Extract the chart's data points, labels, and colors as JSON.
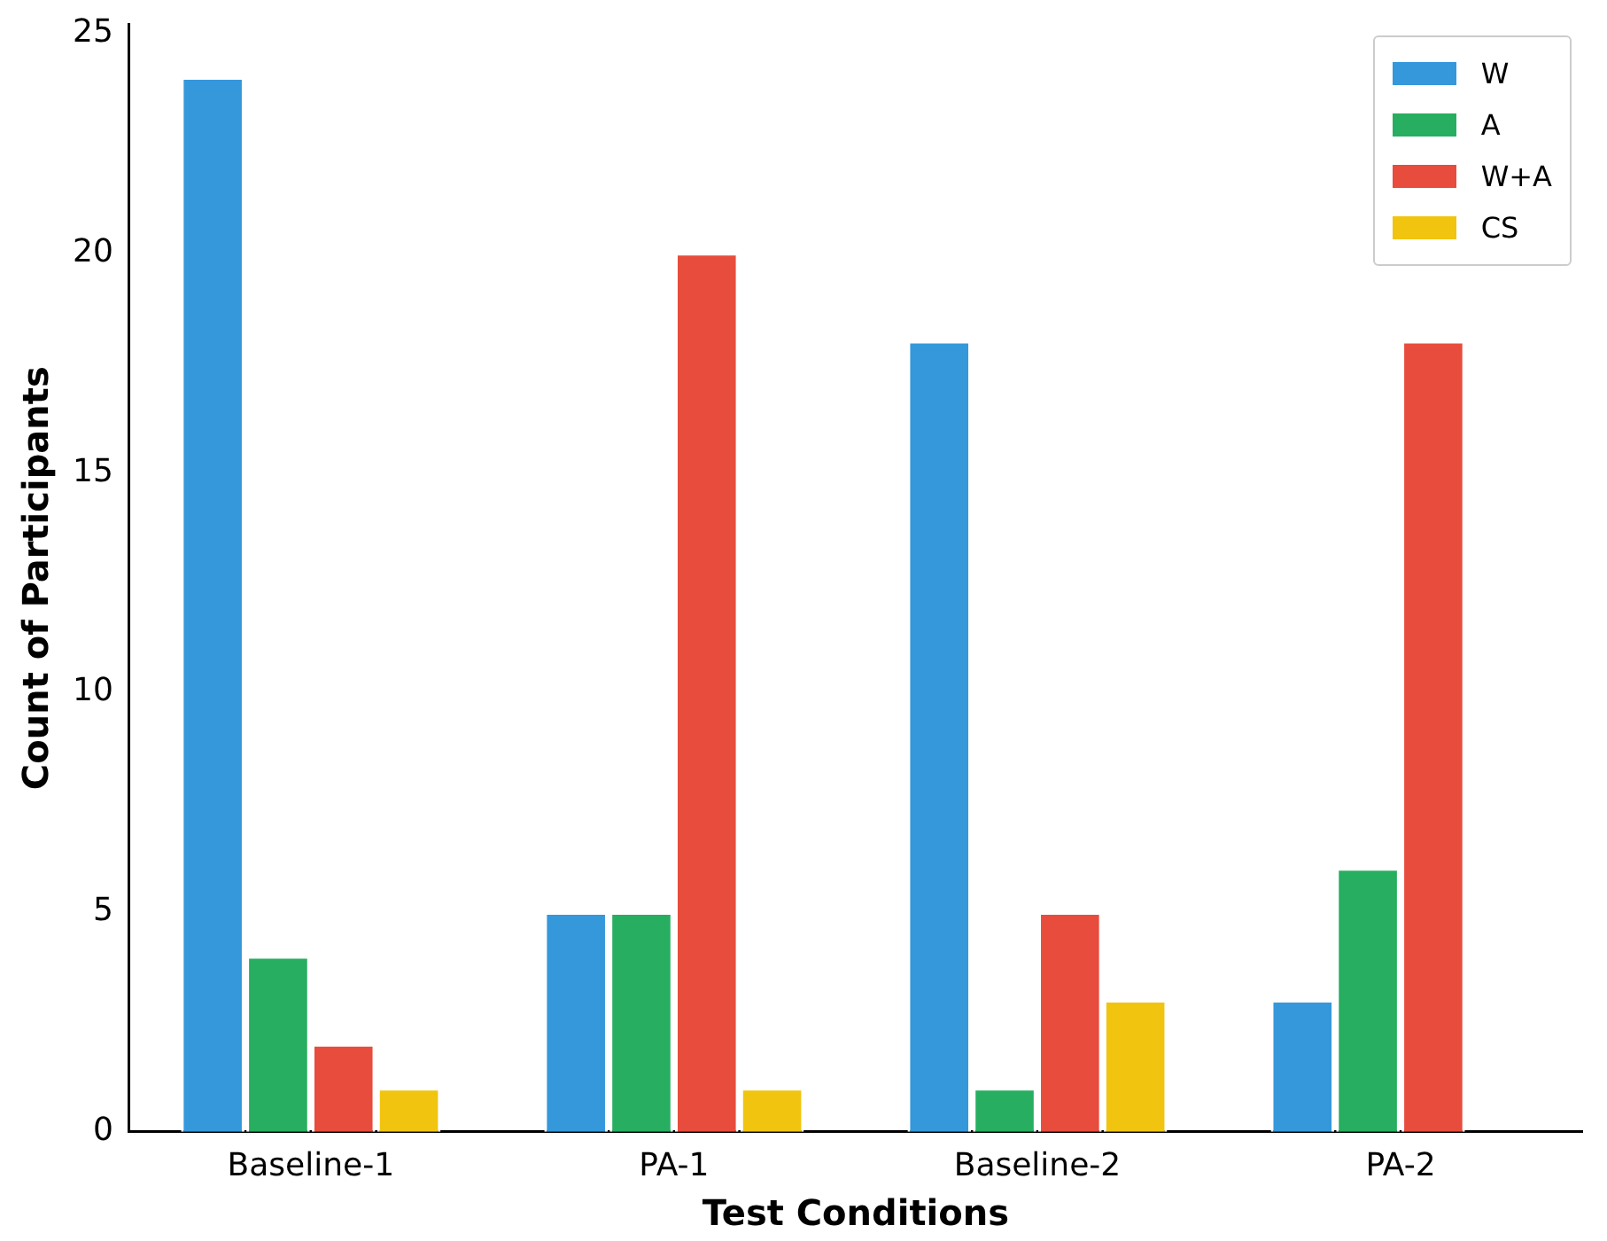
{
  "chart_data": {
    "type": "bar",
    "xlabel": "Test Conditions",
    "ylabel": "Count of Participants",
    "categories": [
      "Baseline-1",
      "PA-1",
      "Baseline-2",
      "PA-2"
    ],
    "series": [
      {
        "name": "W",
        "color": "#3498db",
        "values": [
          24,
          5,
          18,
          3
        ]
      },
      {
        "name": "A",
        "color": "#27ae60",
        "values": [
          4,
          5,
          1,
          6
        ]
      },
      {
        "name": "W+A",
        "color": "#e74c3c",
        "values": [
          2,
          20,
          5,
          18
        ]
      },
      {
        "name": "CS",
        "color": "#f1c40f",
        "values": [
          1,
          1,
          3,
          null
        ]
      }
    ],
    "ylim": [
      0,
      25.2
    ],
    "yticks": [
      0,
      5,
      10,
      15,
      20,
      25
    ],
    "grid": false,
    "legend": "top right"
  }
}
